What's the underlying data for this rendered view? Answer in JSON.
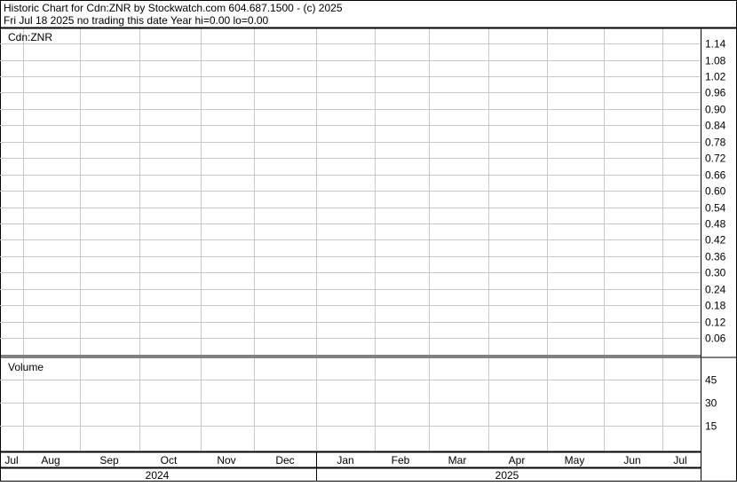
{
  "header": {
    "title": "Historic Chart for Cdn:ZNR by Stockwatch.com 604.687.1500 - (c) 2025",
    "status": "Fri Jul 18 2025   no trading this date  Year hi=0.00  lo=0.00"
  },
  "chart_data": [
    {
      "type": "line",
      "label": "Cdn:ZNR",
      "y_ticks": [
        "1.14",
        "1.08",
        "1.02",
        "0.96",
        "0.90",
        "0.84",
        "0.78",
        "0.72",
        "0.66",
        "0.60",
        "0.54",
        "0.48",
        "0.42",
        "0.36",
        "0.30",
        "0.24",
        "0.18",
        "0.12",
        "0.06"
      ],
      "ylim": [
        0,
        1.19
      ],
      "grid": true,
      "series": []
    },
    {
      "type": "bar",
      "label": "Volume",
      "y_ticks": [
        "45",
        "30",
        "15"
      ],
      "ylim": [
        0,
        57
      ],
      "grid": true,
      "series": []
    }
  ],
  "x_axis": {
    "months": [
      "Jul",
      "Aug",
      "Sep",
      "Oct",
      "Nov",
      "Dec",
      "Jan",
      "Feb",
      "Mar",
      "Apr",
      "May",
      "Jun",
      "Jul"
    ],
    "years": [
      "2024",
      "2025"
    ]
  },
  "colors": {
    "grid": "#c8c8c8",
    "border": "#000000",
    "background": "#ffffff"
  }
}
